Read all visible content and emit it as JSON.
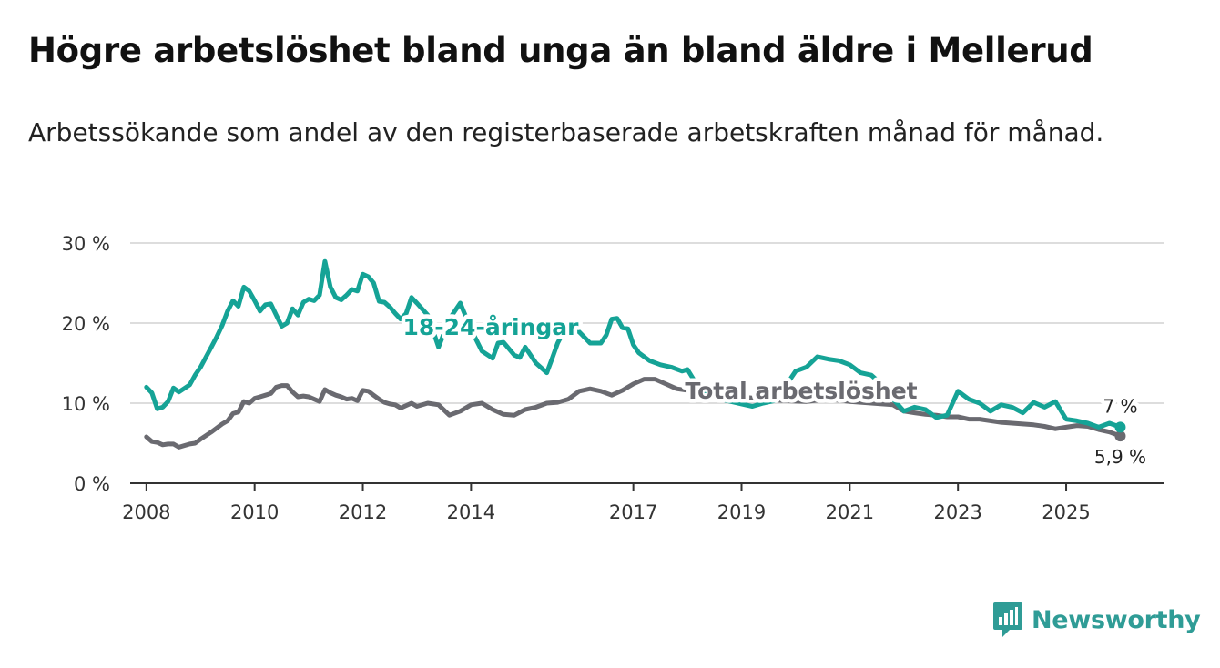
{
  "title": "Högre arbetslöshet bland unga än bland äldre i Mellerud",
  "subtitle": "Arbetssökande som andel av den registerbaserade arbetskraften månad för månad.",
  "brand": "Newsworthy",
  "colors": {
    "youth": "#15a396",
    "total": "#6a6a70",
    "grid": "#dddddd",
    "axis": "#333333",
    "brand": "#2f9c96"
  },
  "chart_data": {
    "type": "line",
    "title": "Högre arbetslöshet bland unga än bland äldre i Mellerud",
    "ylabel": "",
    "xlabel": "",
    "ylim": [
      0,
      30
    ],
    "xlim": [
      2007.7,
      2026.8
    ],
    "yticks": [
      0,
      10,
      20,
      30
    ],
    "ytick_labels": [
      "0 %",
      "10 %",
      "20 %",
      "30 %"
    ],
    "xticks": [
      2008,
      2010,
      2012,
      2014,
      2017,
      2019,
      2021,
      2023,
      2025
    ],
    "xtick_labels": [
      "2008",
      "2010",
      "2012",
      "2014",
      "2017",
      "2019",
      "2021",
      "2023",
      "2025"
    ],
    "series": [
      {
        "name": "18-24-åringar",
        "label": "18-24-åringar",
        "end_label": "7 %",
        "x": [
          2008.0,
          2008.1,
          2008.2,
          2008.3,
          2008.4,
          2008.5,
          2008.6,
          2008.8,
          2008.9,
          2009.0,
          2009.2,
          2009.3,
          2009.4,
          2009.5,
          2009.6,
          2009.7,
          2009.8,
          2009.9,
          2010.0,
          2010.1,
          2010.2,
          2010.3,
          2010.4,
          2010.5,
          2010.6,
          2010.7,
          2010.8,
          2010.9,
          2011.0,
          2011.1,
          2011.2,
          2011.3,
          2011.4,
          2011.5,
          2011.6,
          2011.7,
          2011.8,
          2011.9,
          2012.0,
          2012.1,
          2012.2,
          2012.3,
          2012.4,
          2012.5,
          2012.6,
          2012.7,
          2012.8,
          2012.9,
          2013.0,
          2013.2,
          2013.4,
          2013.6,
          2013.8,
          2014.0,
          2014.2,
          2014.4,
          2014.5,
          2014.6,
          2014.8,
          2014.9,
          2015.0,
          2015.2,
          2015.4,
          2015.5,
          2015.6,
          2015.7,
          2015.9,
          2016.0,
          2016.2,
          2016.4,
          2016.5,
          2016.6,
          2016.7,
          2016.8,
          2016.9,
          2017.0,
          2017.1,
          2017.2,
          2017.3,
          2017.5,
          2017.7,
          2017.9,
          2018.0,
          2018.2,
          2018.4,
          2018.6,
          2018.8,
          2019.0,
          2019.2,
          2019.4,
          2019.6,
          2019.8,
          2020.0,
          2020.2,
          2020.4,
          2020.6,
          2020.8,
          2021.0,
          2021.2,
          2021.4,
          2021.6,
          2021.8,
          2022.0,
          2022.2,
          2022.4,
          2022.6,
          2022.8,
          2023.0,
          2023.2,
          2023.4,
          2023.6,
          2023.8,
          2024.0,
          2024.2,
          2024.4,
          2024.6,
          2024.8,
          2025.0,
          2025.2,
          2025.4,
          2025.6,
          2025.8,
          2026.0
        ],
        "values": [
          12.0,
          11.3,
          9.3,
          9.5,
          10.2,
          11.9,
          11.4,
          12.3,
          13.5,
          14.5,
          17.0,
          18.3,
          19.7,
          21.5,
          22.8,
          22.1,
          24.5,
          24.0,
          22.8,
          21.5,
          22.3,
          22.4,
          21.0,
          19.6,
          20.0,
          21.8,
          21.0,
          22.6,
          23.0,
          22.8,
          23.5,
          27.7,
          24.5,
          23.2,
          22.9,
          23.5,
          24.2,
          24.0,
          26.1,
          25.8,
          25.0,
          22.7,
          22.6,
          22.0,
          21.2,
          20.5,
          21.2,
          23.2,
          22.5,
          21.0,
          17.0,
          20.5,
          22.5,
          19.2,
          16.5,
          15.6,
          17.5,
          17.6,
          16.0,
          15.7,
          17.0,
          15.0,
          13.8,
          15.6,
          17.5,
          18.8,
          19.2,
          18.9,
          17.5,
          17.5,
          18.5,
          20.5,
          20.6,
          19.4,
          19.3,
          17.3,
          16.3,
          15.8,
          15.3,
          14.8,
          14.5,
          14.0,
          14.2,
          12.0,
          11.3,
          10.5,
          10.2,
          9.9,
          9.6,
          10.0,
          10.3,
          12.0,
          14.0,
          14.5,
          15.8,
          15.5,
          15.3,
          14.8,
          13.8,
          13.5,
          12.3,
          10.5,
          9.0,
          9.5,
          9.2,
          8.2,
          8.5,
          11.5,
          10.5,
          10.0,
          9.0,
          9.8,
          9.5,
          8.8,
          10.1,
          9.5,
          10.2,
          8.0,
          7.8,
          7.5,
          7.0,
          7.5,
          7.0
        ]
      },
      {
        "name": "Total arbetslöshet",
        "label": "Total arbetslöshet",
        "end_label": "5,9 %",
        "x": [
          2008.0,
          2008.1,
          2008.2,
          2008.3,
          2008.4,
          2008.5,
          2008.6,
          2008.7,
          2008.8,
          2008.9,
          2009.0,
          2009.2,
          2009.4,
          2009.5,
          2009.6,
          2009.7,
          2009.8,
          2009.9,
          2010.0,
          2010.1,
          2010.2,
          2010.3,
          2010.4,
          2010.5,
          2010.6,
          2010.7,
          2010.8,
          2010.9,
          2011.0,
          2011.1,
          2011.2,
          2011.3,
          2011.4,
          2011.5,
          2011.6,
          2011.7,
          2011.8,
          2011.9,
          2012.0,
          2012.1,
          2012.2,
          2012.3,
          2012.4,
          2012.5,
          2012.6,
          2012.7,
          2012.8,
          2012.9,
          2013.0,
          2013.2,
          2013.4,
          2013.6,
          2013.8,
          2014.0,
          2014.2,
          2014.4,
          2014.6,
          2014.8,
          2015.0,
          2015.2,
          2015.4,
          2015.6,
          2015.8,
          2016.0,
          2016.2,
          2016.4,
          2016.6,
          2016.8,
          2017.0,
          2017.2,
          2017.4,
          2017.6,
          2017.8,
          2018.0,
          2018.3,
          2018.6,
          2019.0,
          2019.4,
          2019.8,
          2020.2,
          2020.6,
          2021.0,
          2021.4,
          2021.8,
          2022.0,
          2022.2,
          2022.4,
          2022.6,
          2022.8,
          2023.0,
          2023.2,
          2023.4,
          2023.6,
          2023.8,
          2024.0,
          2024.2,
          2024.4,
          2024.6,
          2024.8,
          2025.0,
          2025.2,
          2025.4,
          2025.6,
          2025.8,
          2026.0
        ],
        "values": [
          5.8,
          5.2,
          5.1,
          4.8,
          4.9,
          4.9,
          4.5,
          4.7,
          4.9,
          5.0,
          5.5,
          6.4,
          7.4,
          7.8,
          8.7,
          8.9,
          10.2,
          10.0,
          10.6,
          10.8,
          11.0,
          11.2,
          12.0,
          12.2,
          12.2,
          11.4,
          10.8,
          10.9,
          10.8,
          10.5,
          10.2,
          11.7,
          11.3,
          11.0,
          10.8,
          10.5,
          10.6,
          10.3,
          11.6,
          11.5,
          11.0,
          10.5,
          10.1,
          9.9,
          9.8,
          9.4,
          9.7,
          10.0,
          9.6,
          10.0,
          9.8,
          8.5,
          9.0,
          9.8,
          10.0,
          9.2,
          8.6,
          8.5,
          9.2,
          9.5,
          10.0,
          10.1,
          10.5,
          11.5,
          11.8,
          11.5,
          11.0,
          11.6,
          12.4,
          13.0,
          13.0,
          12.4,
          11.8,
          11.6,
          11.3,
          11.0,
          10.8,
          10.5,
          10.3,
          10.2,
          10.5,
          10.2,
          10.0,
          9.8,
          9.0,
          8.8,
          8.6,
          8.5,
          8.3,
          8.3,
          8.0,
          8.0,
          7.8,
          7.6,
          7.5,
          7.4,
          7.3,
          7.1,
          6.8,
          7.0,
          7.2,
          7.1,
          6.7,
          6.4,
          5.9
        ]
      }
    ]
  }
}
